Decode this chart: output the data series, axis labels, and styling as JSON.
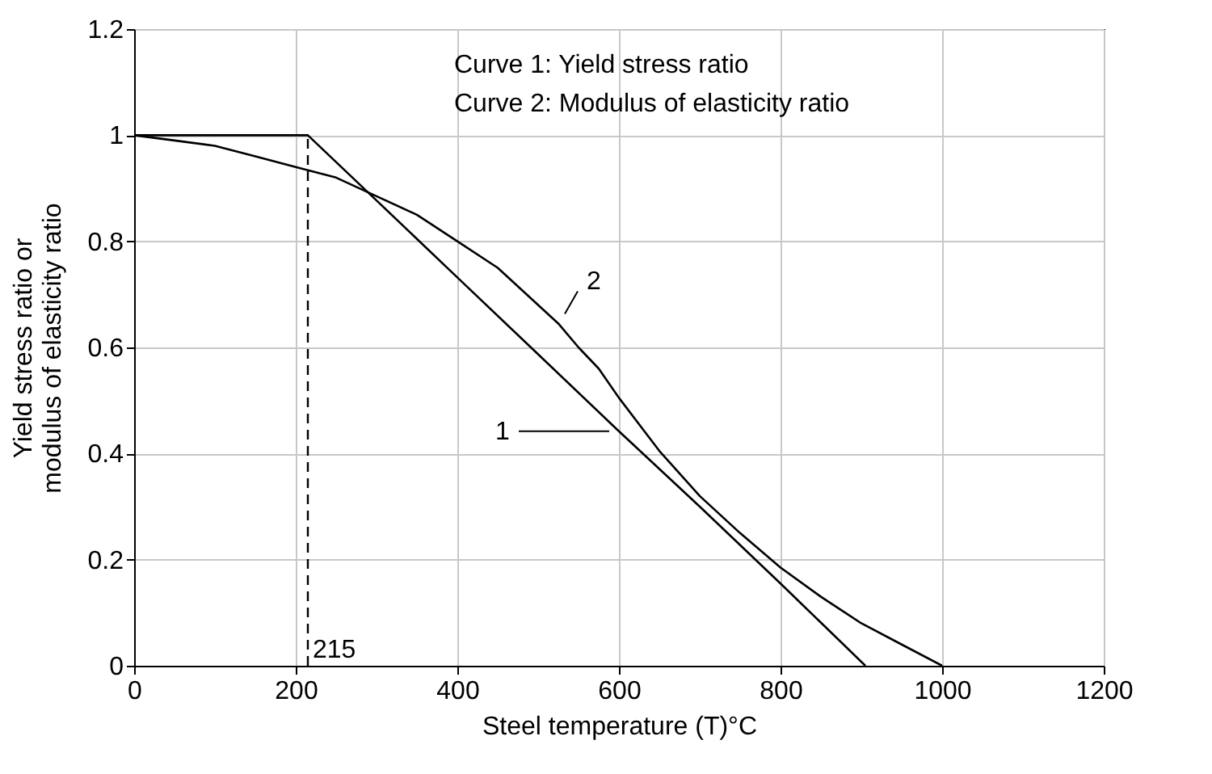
{
  "chart_data": {
    "type": "line",
    "xlabel": "Steel temperature (T)°C",
    "ylabel": "Yield stress ratio or\nmodulus of elasticity ratio",
    "annotations": [
      "Curve 1: Yield stress ratio",
      "Curve 2: Modulus of elasticity ratio"
    ],
    "series": [
      {
        "name": "1",
        "color": "#000000",
        "x": [
          0,
          215,
          300,
          400,
          500,
          600,
          700,
          800,
          905
        ],
        "values": [
          1,
          1,
          0.877,
          0.732,
          0.587,
          0.442,
          0.3,
          0.155,
          0
        ]
      },
      {
        "name": "2",
        "color": "#000000",
        "x": [
          0,
          50,
          100,
          150,
          200,
          250,
          300,
          350,
          400,
          450,
          500,
          525,
          550,
          575,
          600,
          650,
          700,
          750,
          800,
          850,
          900,
          950,
          1000
        ],
        "values": [
          1,
          0.99,
          0.98,
          0.96,
          0.94,
          0.92,
          0.885,
          0.85,
          0.8,
          0.75,
          0.68,
          0.645,
          0.6,
          0.56,
          0.505,
          0.405,
          0.32,
          0.25,
          0.185,
          0.13,
          0.08,
          0.04,
          0
        ]
      }
    ],
    "xlim": [
      0,
      1200
    ],
    "xticks": [
      0,
      200,
      400,
      600,
      800,
      1000,
      1200
    ],
    "ylim": [
      0,
      1.2
    ],
    "yticks": [
      0,
      0.2,
      0.4,
      0.6,
      0.8,
      1,
      1.2
    ],
    "grid": true,
    "line_style": "solid",
    "ref_lines": [
      {
        "axis": "x",
        "value": 215,
        "label": "215",
        "line_style": "dashed",
        "color": "#000000"
      }
    ]
  }
}
